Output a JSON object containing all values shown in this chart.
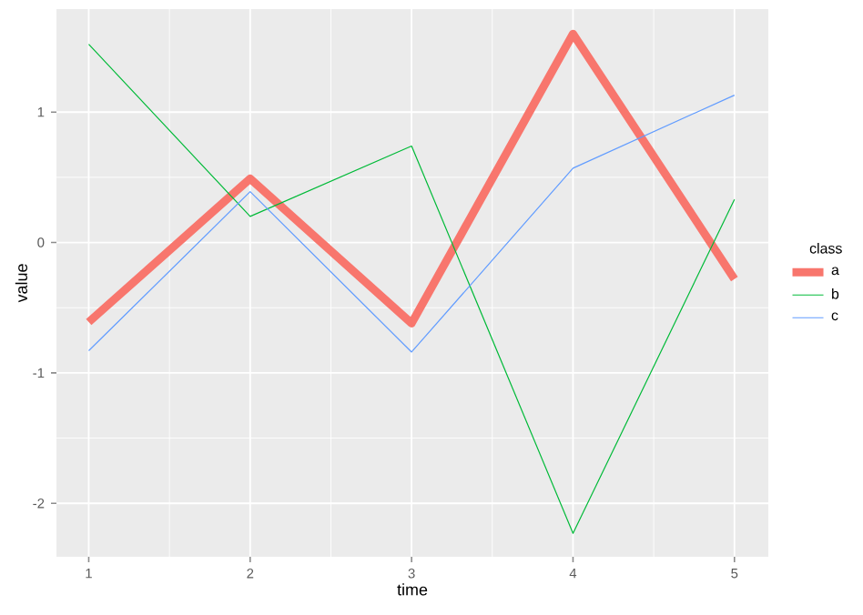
{
  "chart_data": {
    "type": "line",
    "xlabel": "time",
    "ylabel": "value",
    "legend_title": "class",
    "legend": "right",
    "grid": true,
    "x": [
      1,
      2,
      3,
      4,
      5
    ],
    "xlim": [
      0.8,
      5.21
    ],
    "xticks": [
      1,
      2,
      3,
      4,
      5
    ],
    "ylim": [
      -2.41,
      1.79
    ],
    "yticks": [
      -2,
      -1,
      0,
      1
    ],
    "series": [
      {
        "name": "a",
        "color": "#f8766d",
        "values": [
          -0.61,
          0.49,
          -0.62,
          1.6,
          -0.28
        ]
      },
      {
        "name": "b",
        "color": "#00ba38",
        "values": [
          1.52,
          0.2,
          0.74,
          -2.23,
          0.33
        ]
      },
      {
        "name": "c",
        "color": "#619cff",
        "values": [
          -0.83,
          0.39,
          -0.84,
          0.57,
          1.13
        ]
      }
    ]
  }
}
